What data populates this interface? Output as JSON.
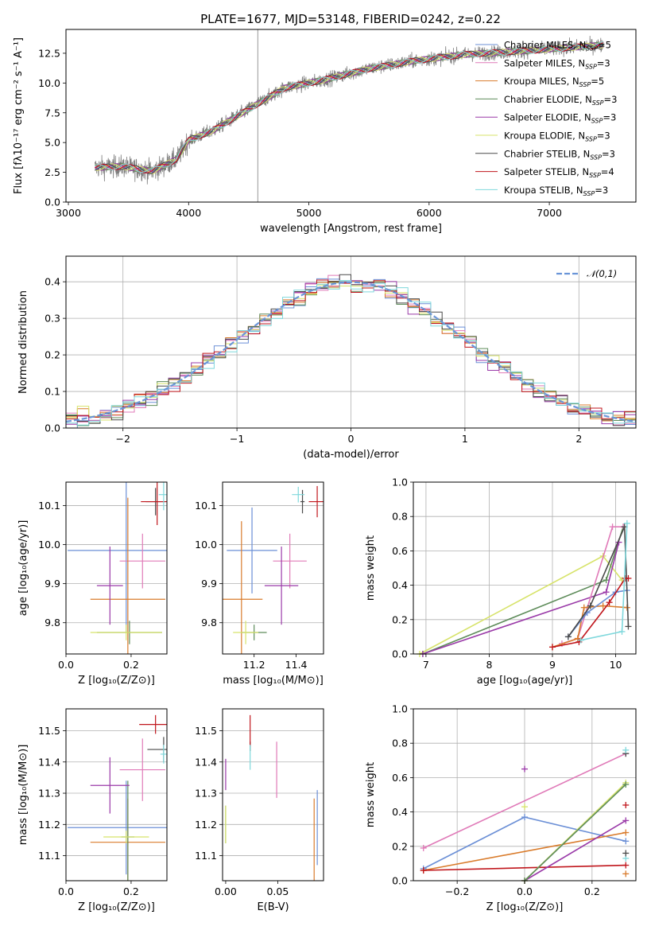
{
  "figure": {
    "title": "PLATE=1677, MJD=53148, FIBERID=0242, z=0.22"
  },
  "colors": {
    "Chabrier MILES": "#6b8fd6",
    "Salpeter MILES": "#e07ab8",
    "Kroupa MILES": "#d97b2b",
    "Chabrier ELODIE": "#5e8c5a",
    "Salpeter ELODIE": "#9a3aa8",
    "Kroupa ELODIE": "#d7e36a",
    "Chabrier STELIB": "#4a4a4a",
    "Salpeter STELIB": "#c0161c",
    "Kroupa STELIB": "#7fd8dc",
    "normal": "#6a95d8",
    "data": "#7f7f7f"
  },
  "legend_entries": [
    {
      "model": "Chabrier MILES",
      "label": "Chabrier MILES, N",
      "sub": "SSP",
      "n": "=5"
    },
    {
      "model": "Salpeter MILES",
      "label": "Salpeter MILES, N",
      "sub": "SSP",
      "n": "=3"
    },
    {
      "model": "Kroupa MILES",
      "label": "Kroupa MILES, N",
      "sub": "SSP",
      "n": "=5"
    },
    {
      "model": "Chabrier ELODIE",
      "label": "Chabrier ELODIE, N",
      "sub": "SSP",
      "n": "=3"
    },
    {
      "model": "Salpeter ELODIE",
      "label": "Salpeter ELODIE, N",
      "sub": "SSP",
      "n": "=3"
    },
    {
      "model": "Kroupa ELODIE",
      "label": "Kroupa ELODIE, N",
      "sub": "SSP",
      "n": "=3"
    },
    {
      "model": "Chabrier STELIB",
      "label": "Chabrier STELIB, N",
      "sub": "SSP",
      "n": "=3"
    },
    {
      "model": "Salpeter STELIB",
      "label": "Salpeter STELIB, N",
      "sub": "SSP",
      "n": "=4"
    },
    {
      "model": "Kroupa STELIB",
      "label": "Kroupa STELIB, N",
      "sub": "SSP",
      "n": "=3"
    }
  ],
  "chart_data": [
    {
      "id": "spectrum",
      "type": "line",
      "xlabel": "wavelength [Angstrom, rest frame]",
      "ylabel": "Flux [fλ10⁻¹⁷ erg cm⁻² s⁻¹ A⁻¹]",
      "xlim": [
        2980,
        7720
      ],
      "ylim": [
        0,
        14.5
      ],
      "xticks": [
        3000,
        4000,
        5000,
        6000,
        7000
      ],
      "yticks": [
        0.0,
        2.5,
        5.0,
        7.5,
        10.0,
        12.5
      ],
      "x_range_data": [
        3220,
        7450
      ],
      "continuum_knots": [
        [
          3220,
          2.9
        ],
        [
          3450,
          3.0
        ],
        [
          3700,
          2.6
        ],
        [
          3900,
          3.6
        ],
        [
          4000,
          5.2
        ],
        [
          4200,
          6.0
        ],
        [
          4500,
          7.8
        ],
        [
          4800,
          9.6
        ],
        [
          5100,
          10.2
        ],
        [
          5500,
          11.2
        ],
        [
          5900,
          11.9
        ],
        [
          6300,
          12.4
        ],
        [
          6800,
          12.7
        ],
        [
          7200,
          13.0
        ],
        [
          7450,
          13.2
        ]
      ],
      "note_legend": true
    },
    {
      "id": "residuals",
      "type": "histogram",
      "xlabel": "(data-model)/error",
      "ylabel": "Normed distribution",
      "xlim": [
        -2.5,
        2.5
      ],
      "ylim": [
        0,
        0.47
      ],
      "xticks": [
        -2,
        -1,
        0,
        1,
        2
      ],
      "yticks": [
        0.0,
        0.1,
        0.2,
        0.3,
        0.4
      ],
      "bin_width": 0.1,
      "normal_label": "𝒩(0,1)"
    },
    {
      "id": "age_vs_Z",
      "type": "errorbar",
      "xlabel": "Z [log₁₀(Z/Z⊙)]",
      "ylabel": "age  [log₁₀(age/yr)]",
      "xlim": [
        0.0,
        0.31
      ],
      "ylim": [
        9.72,
        10.16
      ],
      "xticks": [
        0.0,
        0.2
      ],
      "yticks": [
        9.8,
        9.9,
        10.0,
        10.1
      ],
      "points": [
        {
          "model": "Chabrier MILES",
          "x": 0.185,
          "xerr": 0.18,
          "y": 9.985,
          "yerr": 0.21
        },
        {
          "model": "Salpeter MILES",
          "x": 0.235,
          "xerr": 0.07,
          "y": 9.958,
          "yerr": 0.07
        },
        {
          "model": "Kroupa MILES",
          "x": 0.19,
          "xerr": 0.115,
          "y": 9.86,
          "yerr": 0.26
        },
        {
          "model": "Chabrier ELODIE",
          "x": 0.195,
          "xerr": 0.1,
          "y": 9.775,
          "yerr": 0.03
        },
        {
          "model": "Salpeter ELODIE",
          "x": 0.135,
          "xerr": 0.04,
          "y": 9.895,
          "yerr": 0.1
        },
        {
          "model": "Kroupa ELODIE",
          "x": 0.185,
          "xerr": 0.11,
          "y": 9.775,
          "yerr": 0.02
        },
        {
          "model": "Chabrier STELIB",
          "x": 0.275,
          "xerr": 0.03,
          "y": 10.11,
          "yerr": 0.035
        },
        {
          "model": "Salpeter STELIB",
          "x": 0.28,
          "xerr": 0.05,
          "y": 10.11,
          "yerr": 0.06
        },
        {
          "model": "Kroupa STELIB",
          "x": 0.3,
          "xerr": 0.015,
          "y": 10.128,
          "yerr": 0.04
        }
      ]
    },
    {
      "id": "age_vs_mass",
      "type": "errorbar",
      "xlabel": "mass [log₁₀(M/M⊙)]",
      "ylabel": "",
      "xlim": [
        11.05,
        11.53
      ],
      "ylim": [
        9.72,
        10.16
      ],
      "xticks": [
        11.2,
        11.4
      ],
      "yticks": [
        9.8,
        9.9,
        10.0,
        10.1
      ],
      "points": [
        {
          "model": "Chabrier MILES",
          "x": 11.19,
          "xerr": 0.12,
          "y": 9.985,
          "yerr": 0.11
        },
        {
          "model": "Salpeter MILES",
          "x": 11.37,
          "xerr": 0.08,
          "y": 9.958,
          "yerr": 0.07
        },
        {
          "model": "Kroupa MILES",
          "x": 11.14,
          "xerr": 0.1,
          "y": 9.86,
          "yerr": 0.2
        },
        {
          "model": "Chabrier ELODIE",
          "x": 11.2,
          "xerr": 0.06,
          "y": 9.775,
          "yerr": 0.02
        },
        {
          "model": "Salpeter ELODIE",
          "x": 11.33,
          "xerr": 0.08,
          "y": 9.895,
          "yerr": 0.1
        },
        {
          "model": "Kroupa ELODIE",
          "x": 11.16,
          "xerr": 0.06,
          "y": 9.775,
          "yerr": 0.03
        },
        {
          "model": "Chabrier STELIB",
          "x": 11.43,
          "xerr": 0.01,
          "y": 10.11,
          "yerr": 0.03
        },
        {
          "model": "Salpeter STELIB",
          "x": 11.5,
          "xerr": 0.04,
          "y": 10.11,
          "yerr": 0.04
        },
        {
          "model": "Kroupa STELIB",
          "x": 11.41,
          "xerr": 0.03,
          "y": 10.128,
          "yerr": 0.02
        }
      ]
    },
    {
      "id": "weight_vs_age",
      "type": "line",
      "xlabel": "age  [log₁₀(age/yr)]",
      "ylabel": "mass weight",
      "xlim": [
        6.8,
        10.32
      ],
      "ylim": [
        0.0,
        1.0
      ],
      "xticks": [
        7,
        8,
        9,
        10
      ],
      "yticks": [
        0.0,
        0.2,
        0.4,
        0.6,
        0.8,
        1.0
      ],
      "series": [
        {
          "model": "Kroupa ELODIE",
          "points": [
            [
              6.9,
              0.0
            ],
            [
              9.8,
              0.57
            ],
            [
              10.1,
              0.43
            ]
          ]
        },
        {
          "model": "Chabrier ELODIE",
          "points": [
            [
              6.95,
              0.0
            ],
            [
              9.85,
              0.43
            ],
            [
              10.12,
              0.74
            ]
          ]
        },
        {
          "model": "Salpeter ELODIE",
          "points": [
            [
              6.95,
              0.0
            ],
            [
              9.85,
              0.36
            ],
            [
              10.05,
              0.65
            ]
          ]
        },
        {
          "model": "Salpeter MILES",
          "points": [
            [
              9.15,
              0.06
            ],
            [
              9.4,
              0.09
            ],
            [
              9.95,
              0.74
            ],
            [
              10.12,
              0.74
            ]
          ]
        },
        {
          "model": "Kroupa MILES",
          "points": [
            [
              9.0,
              0.04
            ],
            [
              9.4,
              0.09
            ],
            [
              9.5,
              0.27
            ],
            [
              9.8,
              0.28
            ],
            [
              10.18,
              0.27
            ]
          ]
        },
        {
          "model": "Chabrier MILES",
          "points": [
            [
              9.25,
              0.1
            ],
            [
              9.55,
              0.24
            ],
            [
              10.0,
              0.36
            ],
            [
              10.18,
              0.37
            ]
          ]
        },
        {
          "model": "Chabrier STELIB",
          "points": [
            [
              9.25,
              0.1
            ],
            [
              9.6,
              0.28
            ],
            [
              10.14,
              0.74
            ],
            [
              10.2,
              0.16
            ]
          ]
        },
        {
          "model": "Salpeter STELIB",
          "points": [
            [
              9.0,
              0.04
            ],
            [
              9.42,
              0.07
            ],
            [
              9.9,
              0.3
            ],
            [
              10.15,
              0.44
            ],
            [
              10.2,
              0.44
            ]
          ]
        },
        {
          "model": "Kroupa STELIB",
          "points": [
            [
              9.45,
              0.08
            ],
            [
              10.1,
              0.13
            ],
            [
              10.18,
              0.76
            ]
          ]
        }
      ]
    },
    {
      "id": "mass_vs_Z",
      "type": "errorbar",
      "xlabel": "Z [log₁₀(Z/Z⊙)]",
      "ylabel": "mass [log₁₀(M/M⊙)]",
      "xlim": [
        0.0,
        0.31
      ],
      "ylim": [
        11.02,
        11.57
      ],
      "xticks": [
        0.0,
        0.2
      ],
      "yticks": [
        11.1,
        11.2,
        11.3,
        11.4,
        11.5
      ],
      "points": [
        {
          "model": "Chabrier MILES",
          "x": 0.185,
          "xerr": 0.18,
          "y": 11.19,
          "yerr": 0.15
        },
        {
          "model": "Salpeter MILES",
          "x": 0.235,
          "xerr": 0.07,
          "y": 11.375,
          "yerr": 0.1
        },
        {
          "model": "Kroupa MILES",
          "x": 0.19,
          "xerr": 0.115,
          "y": 11.143,
          "yerr": 0.14
        },
        {
          "model": "Chabrier ELODIE",
          "x": 0.19,
          "xerr": 0.02,
          "y": 11.16,
          "yerr": 0.18
        },
        {
          "model": "Salpeter ELODIE",
          "x": 0.135,
          "xerr": 0.06,
          "y": 11.325,
          "yerr": 0.09
        },
        {
          "model": "Kroupa ELODIE",
          "x": 0.185,
          "xerr": 0.07,
          "y": 11.16,
          "yerr": 0.02
        },
        {
          "model": "Chabrier STELIB",
          "x": 0.3,
          "xerr": 0.05,
          "y": 11.44,
          "yerr": 0.04
        },
        {
          "model": "Salpeter STELIB",
          "x": 0.275,
          "xerr": 0.05,
          "y": 11.52,
          "yerr": 0.03
        },
        {
          "model": "Kroupa STELIB",
          "x": 0.3,
          "xerr": 0.01,
          "y": 11.425,
          "yerr": 0.03
        }
      ]
    },
    {
      "id": "mass_vs_EBV",
      "type": "errorbar",
      "xlabel": "E(B-V)",
      "ylabel": "",
      "xlim": [
        -0.003,
        0.094
      ],
      "ylim": [
        11.02,
        11.57
      ],
      "xticks": [
        0.0,
        0.05
      ],
      "yticks": [
        11.1,
        11.2,
        11.3,
        11.4,
        11.5
      ],
      "points": [
        {
          "model": "Chabrier MILES",
          "x": 0.088,
          "xerr": 0.0,
          "y": 11.19,
          "yerr": 0.12
        },
        {
          "model": "Salpeter MILES",
          "x": 0.049,
          "xerr": 0.0,
          "y": 11.375,
          "yerr": 0.09
        },
        {
          "model": "Kroupa MILES",
          "x": 0.085,
          "xerr": 0.0,
          "y": 11.143,
          "yerr": 0.14
        },
        {
          "model": "Chabrier ELODIE",
          "x": 0.0,
          "xerr": 0.0,
          "y": 11.2,
          "yerr": 0.06
        },
        {
          "model": "Salpeter ELODIE",
          "x": 0.0,
          "xerr": 0.0,
          "y": 11.36,
          "yerr": 0.05
        },
        {
          "model": "Kroupa ELODIE",
          "x": 0.0,
          "xerr": 0.0,
          "y": 11.2,
          "yerr": 0.06
        },
        {
          "model": "Chabrier STELIB",
          "x": 0.0235,
          "xerr": 0.0,
          "y": 11.45,
          "yerr": 0.015
        },
        {
          "model": "Salpeter STELIB",
          "x": 0.0235,
          "xerr": 0.0,
          "y": 11.5,
          "yerr": 0.05
        },
        {
          "model": "Kroupa STELIB",
          "x": 0.0235,
          "xerr": 0.0,
          "y": 11.415,
          "yerr": 0.04
        }
      ]
    },
    {
      "id": "weight_vs_Z",
      "type": "line",
      "xlabel": "Z [log₁₀(Z/Z⊙)]",
      "ylabel": "mass weight",
      "xlim": [
        -0.33,
        0.33
      ],
      "ylim": [
        0.0,
        1.0
      ],
      "xticks": [
        -0.2,
        0.0,
        0.2
      ],
      "yticks": [
        0.0,
        0.2,
        0.4,
        0.6,
        0.8,
        1.0
      ],
      "series": [
        {
          "model": "Salpeter MILES",
          "points": [
            [
              -0.3,
              0.19
            ],
            [
              0.3,
              0.74
            ]
          ]
        },
        {
          "model": "Chabrier MILES",
          "points": [
            [
              -0.3,
              0.07
            ],
            [
              0.0,
              0.37
            ],
            [
              0.3,
              0.23
            ]
          ]
        },
        {
          "model": "Kroupa MILES",
          "points": [
            [
              -0.3,
              0.06
            ],
            [
              0.3,
              0.28
            ]
          ]
        },
        {
          "model": "Salpeter STELIB",
          "points": [
            [
              -0.3,
              0.06
            ],
            [
              0.3,
              0.09
            ]
          ]
        },
        {
          "model": "Salpeter ELODIE",
          "points": [
            [
              0.0,
              0.0
            ],
            [
              0.3,
              0.35
            ]
          ]
        },
        {
          "model": "Kroupa ELODIE",
          "points": [
            [
              0.0,
              0.0
            ],
            [
              0.3,
              0.57
            ]
          ]
        },
        {
          "model": "Chabrier ELODIE",
          "points": [
            [
              0.0,
              0.0
            ],
            [
              0.3,
              0.56
            ]
          ]
        }
      ],
      "markers": [
        {
          "model": "Salpeter ELODIE",
          "x": 0.0,
          "y": 0.65
        },
        {
          "model": "Kroupa ELODIE",
          "x": 0.0,
          "y": 0.43
        },
        {
          "model": "Chabrier STELIB",
          "x": 0.3,
          "y": 0.74
        },
        {
          "model": "Kroupa STELIB",
          "x": 0.3,
          "y": 0.76
        },
        {
          "model": "Kroupa STELIB",
          "x": 0.3,
          "y": 0.13
        },
        {
          "model": "Chabrier STELIB",
          "x": 0.3,
          "y": 0.16
        },
        {
          "model": "Salpeter STELIB",
          "x": 0.3,
          "y": 0.44
        },
        {
          "model": "Kroupa MILES",
          "x": 0.3,
          "y": 0.04
        }
      ]
    }
  ]
}
